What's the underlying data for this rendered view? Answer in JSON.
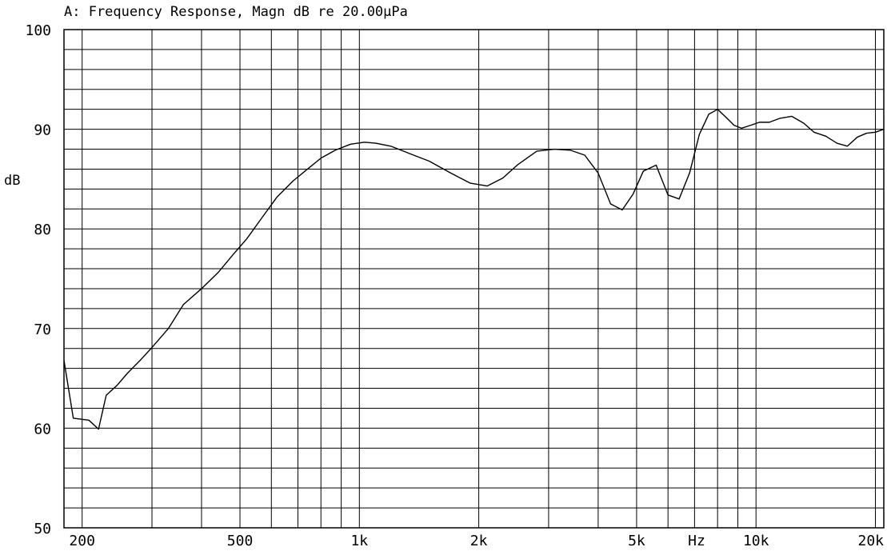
{
  "chart_data": {
    "type": "line",
    "title": "A: Frequency Response, Magn dB re 20.00µPa",
    "ylabel": "dB",
    "xunit_label": "Hz",
    "xscale": "log",
    "xlim": [
      180,
      21000
    ],
    "ylim": [
      50,
      100
    ],
    "grid": true,
    "colors": {
      "line": "#000000",
      "grid": "#000000",
      "background": "#ffffff"
    },
    "yticks": [
      {
        "value": 50,
        "label": "50"
      },
      {
        "value": 60,
        "label": "60"
      },
      {
        "value": 70,
        "label": "70"
      },
      {
        "value": 80,
        "label": "80"
      },
      {
        "value": 90,
        "label": "90"
      },
      {
        "value": 100,
        "label": "100"
      }
    ],
    "xticks": [
      {
        "value": 200,
        "label": "200"
      },
      {
        "value": 500,
        "label": "500"
      },
      {
        "value": 1000,
        "label": "1k"
      },
      {
        "value": 2000,
        "label": "2k"
      },
      {
        "value": 5000,
        "label": "5k"
      },
      {
        "value": 10000,
        "label": "10k"
      },
      {
        "value": 20000,
        "label": "20k"
      }
    ],
    "series": [
      {
        "x": [
          180,
          190,
          208,
          220,
          230,
          245,
          260,
          280,
          300,
          330,
          360,
          400,
          440,
          480,
          520,
          570,
          620,
          680,
          740,
          800,
          870,
          950,
          1030,
          1100,
          1200,
          1350,
          1500,
          1700,
          1900,
          2100,
          2300,
          2500,
          2800,
          3100,
          3400,
          3700,
          4000,
          4300,
          4600,
          4900,
          5200,
          5600,
          6000,
          6400,
          6800,
          7200,
          7600,
          8000,
          8400,
          8800,
          9200,
          9700,
          10200,
          10800,
          11500,
          12300,
          13200,
          14000,
          15000,
          16000,
          17000,
          18000,
          19000,
          20000,
          21000
        ],
        "y": [
          66.8,
          61.0,
          60.8,
          59.9,
          63.3,
          64.3,
          65.5,
          66.8,
          68.1,
          70.0,
          72.4,
          74.0,
          75.6,
          77.4,
          79.0,
          81.2,
          83.2,
          84.8,
          86.0,
          87.1,
          87.9,
          88.5,
          88.7,
          88.6,
          88.3,
          87.5,
          86.8,
          85.6,
          84.6,
          84.3,
          85.1,
          86.4,
          87.8,
          88.0,
          87.9,
          87.4,
          85.6,
          82.5,
          81.9,
          83.5,
          85.8,
          86.4,
          83.4,
          83.0,
          85.6,
          89.5,
          91.5,
          92.0,
          91.2,
          90.4,
          90.1,
          90.4,
          90.7,
          90.7,
          91.1,
          91.3,
          90.6,
          89.7,
          89.3,
          88.6,
          88.3,
          89.2,
          89.6,
          89.7,
          90.0
        ]
      }
    ]
  }
}
